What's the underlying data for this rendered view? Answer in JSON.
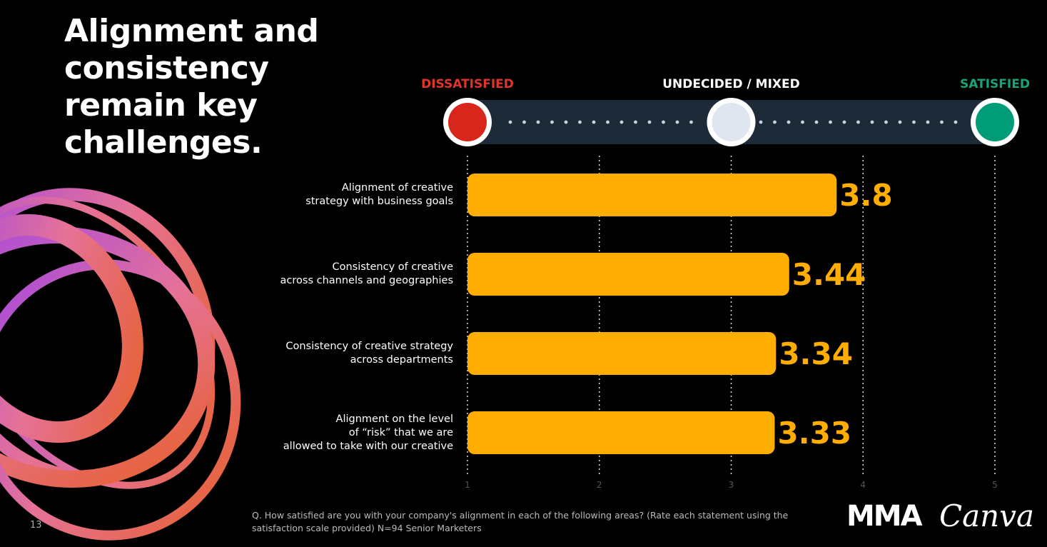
{
  "chart_data": {
    "type": "bar",
    "orientation": "horizontal",
    "title": "Alignment and consistency remain key challenges.",
    "scale_labels": [
      {
        "value": 1,
        "label": "DISSATISFIED",
        "color": "#e0352b",
        "dot": "#d9261c"
      },
      {
        "value": 3,
        "label": "UNDECIDED / MIXED",
        "color": "#ffffff",
        "dot": "#dfe6f0"
      },
      {
        "value": 5,
        "label": "SATISFIED",
        "color": "#1aa37a",
        "dot": "#009b77"
      }
    ],
    "categories": [
      "Alignment of creative\nstrategy with business goals",
      "Consistency of creative\nacross channels and geographies",
      "Consistency of creative strategy\nacross departments",
      "Alignment on the level\nof “risk” that we are\nallowed to take with our creative"
    ],
    "values": [
      3.8,
      3.44,
      3.34,
      3.33
    ],
    "color": "#ffad00",
    "xlim": [
      1,
      5
    ],
    "xticks": [
      1,
      2,
      3,
      4,
      5
    ],
    "grid": true,
    "footnote": "Q. How satisfied are you with your company's alignment in each of the following areas? (Rate each statement using the satisfaction scale provided) N=94 Senior Marketers",
    "page_number": "13",
    "logos": [
      "MMA",
      "Canva"
    ]
  }
}
